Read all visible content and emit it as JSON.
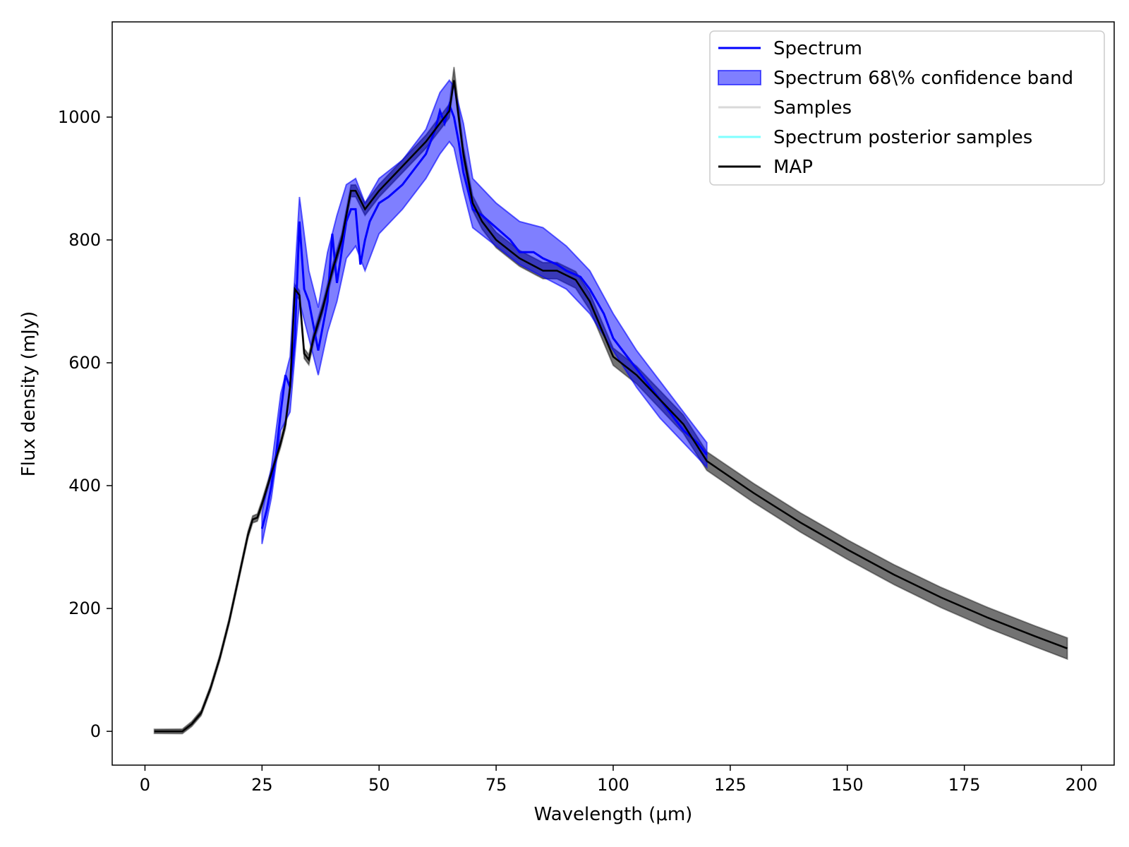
{
  "chart_data": {
    "type": "line",
    "title": "",
    "xlabel": "Wavelength (μm)",
    "ylabel": "Flux density (mJy)",
    "xlim": [
      -7,
      207
    ],
    "ylim": [
      -55,
      1155
    ],
    "x_ticks": [
      0,
      25,
      50,
      75,
      100,
      125,
      150,
      175,
      200
    ],
    "y_ticks": [
      0,
      200,
      400,
      600,
      800,
      1000
    ],
    "x_tick_labels": [
      "0",
      "25",
      "50",
      "75",
      "100",
      "125",
      "150",
      "175",
      "200"
    ],
    "y_tick_labels": [
      "0",
      "200",
      "400",
      "600",
      "800",
      "1000"
    ],
    "grid": false,
    "legend_position": "top-right",
    "legend": [
      {
        "label": "Spectrum",
        "kind": "line",
        "color": "#0000ff"
      },
      {
        "label": "Spectrum 68\\% confidence band",
        "kind": "patch",
        "color": "#0000ff"
      },
      {
        "label": "Samples",
        "kind": "line",
        "color": "#d9d9d9"
      },
      {
        "label": "Spectrum posterior samples",
        "kind": "line",
        "color": "#7fffff"
      },
      {
        "label": "MAP",
        "kind": "line",
        "color": "#000000"
      }
    ],
    "series": [
      {
        "name": "Samples",
        "color": "#000000",
        "band_halfwidth_at_end": 12,
        "x": [
          2,
          8,
          10,
          12,
          14,
          16,
          18,
          20,
          22,
          23,
          24,
          25,
          27,
          29,
          30,
          31,
          32,
          33,
          34,
          35,
          36,
          38,
          40,
          42,
          44,
          45,
          47,
          50,
          55,
          60,
          63,
          65,
          66,
          68,
          70,
          72,
          75,
          80,
          85,
          88,
          92,
          95,
          100,
          105,
          110,
          115,
          120,
          130,
          140,
          150,
          160,
          170,
          180,
          190,
          197
        ],
        "y": [
          0,
          0,
          12,
          30,
          70,
          120,
          180,
          250,
          320,
          345,
          348,
          370,
          420,
          470,
          500,
          560,
          720,
          710,
          615,
          605,
          640,
          690,
          750,
          800,
          880,
          880,
          850,
          880,
          920,
          960,
          990,
          1010,
          1070,
          940,
          860,
          830,
          800,
          770,
          750,
          750,
          735,
          700,
          610,
          580,
          540,
          500,
          440,
          388,
          340,
          296,
          255,
          218,
          185,
          155,
          135
        ]
      },
      {
        "name": "MAP",
        "color": "#000000",
        "x": [
          2,
          8,
          10,
          12,
          14,
          16,
          18,
          20,
          22,
          23,
          24,
          25,
          27,
          29,
          30,
          31,
          32,
          33,
          34,
          35,
          36,
          38,
          40,
          42,
          44,
          45,
          47,
          50,
          55,
          60,
          63,
          65,
          66,
          68,
          70,
          72,
          75,
          80,
          85,
          88,
          92,
          95,
          100,
          105,
          110,
          115,
          120,
          130,
          140,
          150,
          160,
          170,
          180,
          190,
          197
        ],
        "y": [
          0,
          0,
          12,
          30,
          70,
          120,
          180,
          250,
          320,
          345,
          348,
          370,
          420,
          470,
          500,
          560,
          720,
          710,
          615,
          605,
          640,
          690,
          750,
          800,
          880,
          880,
          850,
          880,
          920,
          960,
          990,
          1010,
          1060,
          940,
          860,
          830,
          800,
          770,
          750,
          750,
          735,
          700,
          610,
          580,
          540,
          500,
          440,
          388,
          340,
          296,
          255,
          218,
          185,
          155,
          135
        ]
      },
      {
        "name": "Spectrum",
        "color": "#0000ff",
        "x": [
          25,
          26,
          27,
          28,
          29,
          30,
          31,
          32,
          33,
          34,
          35,
          36,
          37,
          38,
          39,
          40,
          41,
          42,
          43,
          44,
          45,
          46,
          47,
          48,
          50,
          52,
          55,
          58,
          60,
          62,
          63,
          64,
          65,
          66,
          67,
          68,
          69,
          70,
          72,
          75,
          78,
          80,
          83,
          85,
          88,
          90,
          93,
          95,
          98,
          100,
          103,
          105,
          108,
          110,
          113,
          115,
          118,
          120
        ],
        "y": [
          330,
          360,
          400,
          450,
          520,
          580,
          560,
          640,
          830,
          720,
          700,
          660,
          620,
          660,
          700,
          810,
          730,
          780,
          830,
          850,
          850,
          760,
          800,
          830,
          860,
          870,
          890,
          920,
          940,
          980,
          1010,
          990,
          1020,
          1000,
          960,
          910,
          880,
          850,
          840,
          820,
          800,
          780,
          780,
          770,
          760,
          750,
          740,
          720,
          680,
          640,
          610,
          590,
          560,
          540,
          510,
          490,
          470,
          450
        ]
      }
    ],
    "confidence_band": {
      "name": "Spectrum 68\\% confidence band",
      "color": "#0000ff",
      "x": [
        25,
        27,
        29,
        31,
        33,
        35,
        37,
        39,
        41,
        43,
        45,
        47,
        50,
        55,
        60,
        63,
        65,
        66,
        68,
        70,
        75,
        80,
        85,
        90,
        95,
        100,
        105,
        110,
        115,
        120
      ],
      "lower": [
        305,
        380,
        490,
        520,
        700,
        640,
        580,
        650,
        700,
        770,
        790,
        750,
        810,
        850,
        900,
        940,
        960,
        950,
        880,
        820,
        790,
        760,
        740,
        720,
        680,
        620,
        560,
        510,
        470,
        430
      ],
      "upper": [
        355,
        430,
        550,
        610,
        870,
        750,
        690,
        780,
        840,
        890,
        900,
        860,
        900,
        930,
        980,
        1040,
        1060,
        1050,
        990,
        900,
        860,
        830,
        820,
        790,
        750,
        680,
        620,
        570,
        520,
        470
      ]
    }
  }
}
